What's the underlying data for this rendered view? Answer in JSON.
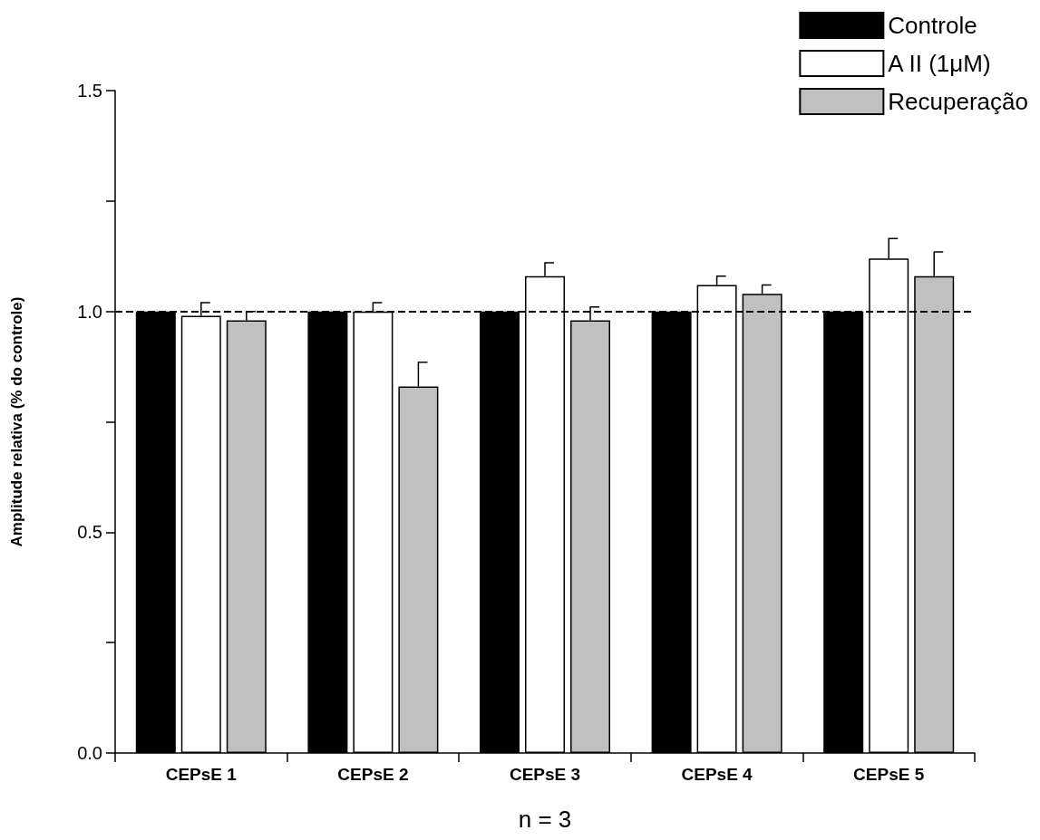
{
  "chart_data": {
    "type": "bar",
    "xlabel": "n = 3",
    "ylabel": "Amplitude relativa (% do controle)",
    "categories": [
      "CEPsE 1",
      "CEPsE 2",
      "CEPsE 3",
      "CEPsE 4",
      "CEPsE 5"
    ],
    "series": [
      {
        "name": "Controle",
        "color": "#000000",
        "values": [
          1.0,
          1.0,
          1.0,
          1.0,
          1.0
        ]
      },
      {
        "name": "A II (1μM)",
        "color": "#ffffff",
        "values": [
          0.99,
          1.0,
          1.08,
          1.06,
          1.12
        ],
        "errors": [
          [
            0.99,
            1.02
          ],
          [
            1.0,
            1.02
          ],
          [
            1.08,
            1.11
          ],
          [
            1.06,
            1.08
          ],
          [
            1.12,
            1.165
          ]
        ]
      },
      {
        "name": "Recuperação",
        "color": "#c0c0c0",
        "values": [
          0.98,
          0.83,
          0.98,
          1.04,
          1.08
        ],
        "errors": [
          [
            0.98,
            1.0
          ],
          [
            0.83,
            0.885
          ],
          [
            0.98,
            1.01
          ],
          [
            1.04,
            1.06
          ],
          [
            1.08,
            1.135
          ]
        ]
      }
    ],
    "ylim": [
      0,
      1.5
    ],
    "yticks": [
      {
        "value": 0,
        "label": "0.0"
      },
      {
        "value": 0.25,
        "label": null
      },
      {
        "value": 0.5,
        "label": "0.5"
      },
      {
        "value": 0.75,
        "label": null
      },
      {
        "value": 1,
        "label": "1.0"
      },
      {
        "value": 1.25,
        "label": null
      },
      {
        "value": 1.5,
        "label": "1.5"
      }
    ],
    "ref_lines": [
      {
        "axis": "y",
        "value": 1,
        "line_style": "dashed",
        "color": "#000000"
      }
    ],
    "legend": "top right",
    "grid": false
  }
}
